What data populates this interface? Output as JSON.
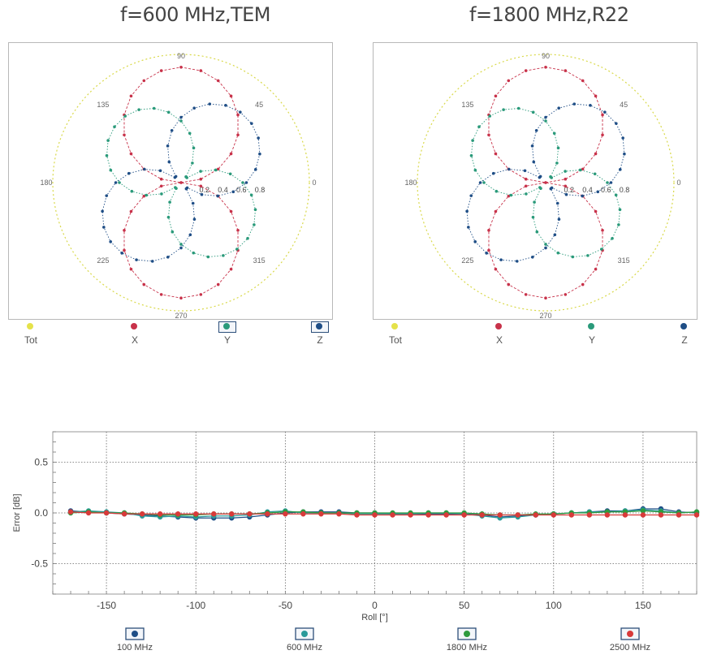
{
  "chart_data": [
    {
      "type": "polar",
      "title": "f=600 MHz,TEM",
      "angle_labels": [
        "90",
        "45",
        "0",
        "315",
        "270",
        "225",
        "180",
        "135"
      ],
      "radial_labels": [
        "0.2",
        "0.4",
        "0.6",
        "0.8"
      ],
      "rmax": 1.0,
      "series": [
        {
          "name": "Tot",
          "color": "#d9d94a",
          "pattern": "constant",
          "value": 1.0
        },
        {
          "name": "X",
          "color": "#c8324a",
          "pattern": "figure-eight",
          "lobe_axis_deg": 90,
          "peak": 0.9
        },
        {
          "name": "Y",
          "color": "#2a9a7a",
          "pattern": "figure-eight",
          "lobe_axis_deg": 135,
          "peak": 0.68
        },
        {
          "name": "Z",
          "color": "#1f4e86",
          "pattern": "figure-eight",
          "lobe_axis_deg": 45,
          "peak": 0.72
        }
      ],
      "legend": [
        {
          "label": "Tot",
          "color": "#e5e24a",
          "boxed": false
        },
        {
          "label": "X",
          "color": "#c8324a",
          "boxed": false
        },
        {
          "label": "Y",
          "color": "#2a9a7a",
          "boxed": true
        },
        {
          "label": "Z",
          "color": "#1f4e86",
          "boxed": true
        }
      ]
    },
    {
      "type": "polar",
      "title": "f=1800 MHz,R22",
      "angle_labels": [
        "90",
        "45",
        "0",
        "315",
        "270",
        "225",
        "180",
        "135"
      ],
      "radial_labels": [
        "0.2",
        "0.4",
        "0.6",
        "0.8"
      ],
      "rmax": 1.0,
      "series": [
        {
          "name": "Tot",
          "color": "#d9d94a",
          "pattern": "constant",
          "value": 1.0
        },
        {
          "name": "X",
          "color": "#c8324a",
          "pattern": "figure-eight",
          "lobe_axis_deg": 90,
          "peak": 0.9
        },
        {
          "name": "Y",
          "color": "#2a9a7a",
          "pattern": "figure-eight",
          "lobe_axis_deg": 135,
          "peak": 0.68
        },
        {
          "name": "Z",
          "color": "#1f4e86",
          "pattern": "figure-eight",
          "lobe_axis_deg": 45,
          "peak": 0.72
        }
      ],
      "legend": [
        {
          "label": "Tot",
          "color": "#e5e24a",
          "boxed": false
        },
        {
          "label": "X",
          "color": "#c8324a",
          "boxed": false
        },
        {
          "label": "Y",
          "color": "#2a9a7a",
          "boxed": false
        },
        {
          "label": "Z",
          "color": "#1f4e86",
          "boxed": false
        }
      ]
    },
    {
      "type": "line",
      "title": "",
      "xlabel": "Roll [°]",
      "ylabel": "Error [dB]",
      "xlim": [
        -180,
        180
      ],
      "ylim": [
        -0.8,
        0.8
      ],
      "xticks": [
        -150,
        -100,
        -50,
        0,
        50,
        100,
        150
      ],
      "yticks": [
        0.5,
        0.0,
        -0.5
      ],
      "ytick_labels": [
        "0.5",
        "0.0",
        "-0.5"
      ],
      "grid": true,
      "legend_position": "bottom",
      "x": [
        -170,
        -160,
        -150,
        -140,
        -130,
        -120,
        -110,
        -100,
        -90,
        -80,
        -70,
        -60,
        -50,
        -40,
        -30,
        -20,
        -10,
        0,
        10,
        20,
        30,
        40,
        50,
        60,
        70,
        80,
        90,
        100,
        110,
        120,
        130,
        140,
        150,
        160,
        170,
        180
      ],
      "series": [
        {
          "name": "100 MHz",
          "color": "#1f4e86",
          "values": [
            0.02,
            0.01,
            0.0,
            -0.01,
            -0.02,
            -0.03,
            -0.04,
            -0.05,
            -0.05,
            -0.05,
            -0.04,
            -0.02,
            0.0,
            0.01,
            0.01,
            0.01,
            0.0,
            0.0,
            -0.01,
            -0.01,
            -0.01,
            -0.01,
            -0.01,
            -0.02,
            -0.04,
            -0.03,
            -0.02,
            -0.01,
            0.0,
            0.01,
            0.02,
            0.02,
            0.04,
            0.04,
            0.01,
            0.0
          ]
        },
        {
          "name": "600 MHz",
          "color": "#2a9a9a",
          "values": [
            0.01,
            0.02,
            0.01,
            0.0,
            -0.03,
            -0.04,
            -0.03,
            -0.04,
            -0.03,
            -0.03,
            -0.02,
            0.01,
            0.02,
            0.0,
            0.0,
            0.0,
            -0.01,
            -0.01,
            -0.01,
            -0.01,
            0.0,
            0.0,
            -0.01,
            -0.03,
            -0.05,
            -0.04,
            -0.02,
            -0.01,
            0.0,
            0.01,
            0.01,
            0.02,
            0.03,
            0.02,
            0.0,
            0.01
          ]
        },
        {
          "name": "1800 MHz",
          "color": "#2e9a3e",
          "values": [
            0.0,
            0.01,
            0.0,
            0.0,
            -0.01,
            -0.02,
            -0.02,
            -0.02,
            -0.01,
            -0.01,
            -0.01,
            0.0,
            0.01,
            0.01,
            0.0,
            0.0,
            0.0,
            0.0,
            0.0,
            0.0,
            0.0,
            0.0,
            0.0,
            -0.01,
            -0.02,
            -0.02,
            -0.01,
            -0.01,
            0.0,
            0.0,
            0.01,
            0.01,
            0.02,
            0.01,
            0.0,
            0.01
          ]
        },
        {
          "name": "2500 MHz",
          "color": "#d83a3a",
          "values": [
            0.01,
            0.0,
            0.0,
            -0.01,
            -0.01,
            -0.01,
            -0.01,
            -0.01,
            -0.01,
            -0.01,
            -0.01,
            -0.01,
            -0.01,
            -0.01,
            -0.01,
            -0.01,
            -0.02,
            -0.02,
            -0.02,
            -0.02,
            -0.02,
            -0.02,
            -0.02,
            -0.02,
            -0.02,
            -0.02,
            -0.02,
            -0.02,
            -0.02,
            -0.02,
            -0.02,
            -0.02,
            -0.02,
            -0.02,
            -0.02,
            -0.02
          ]
        }
      ]
    }
  ]
}
